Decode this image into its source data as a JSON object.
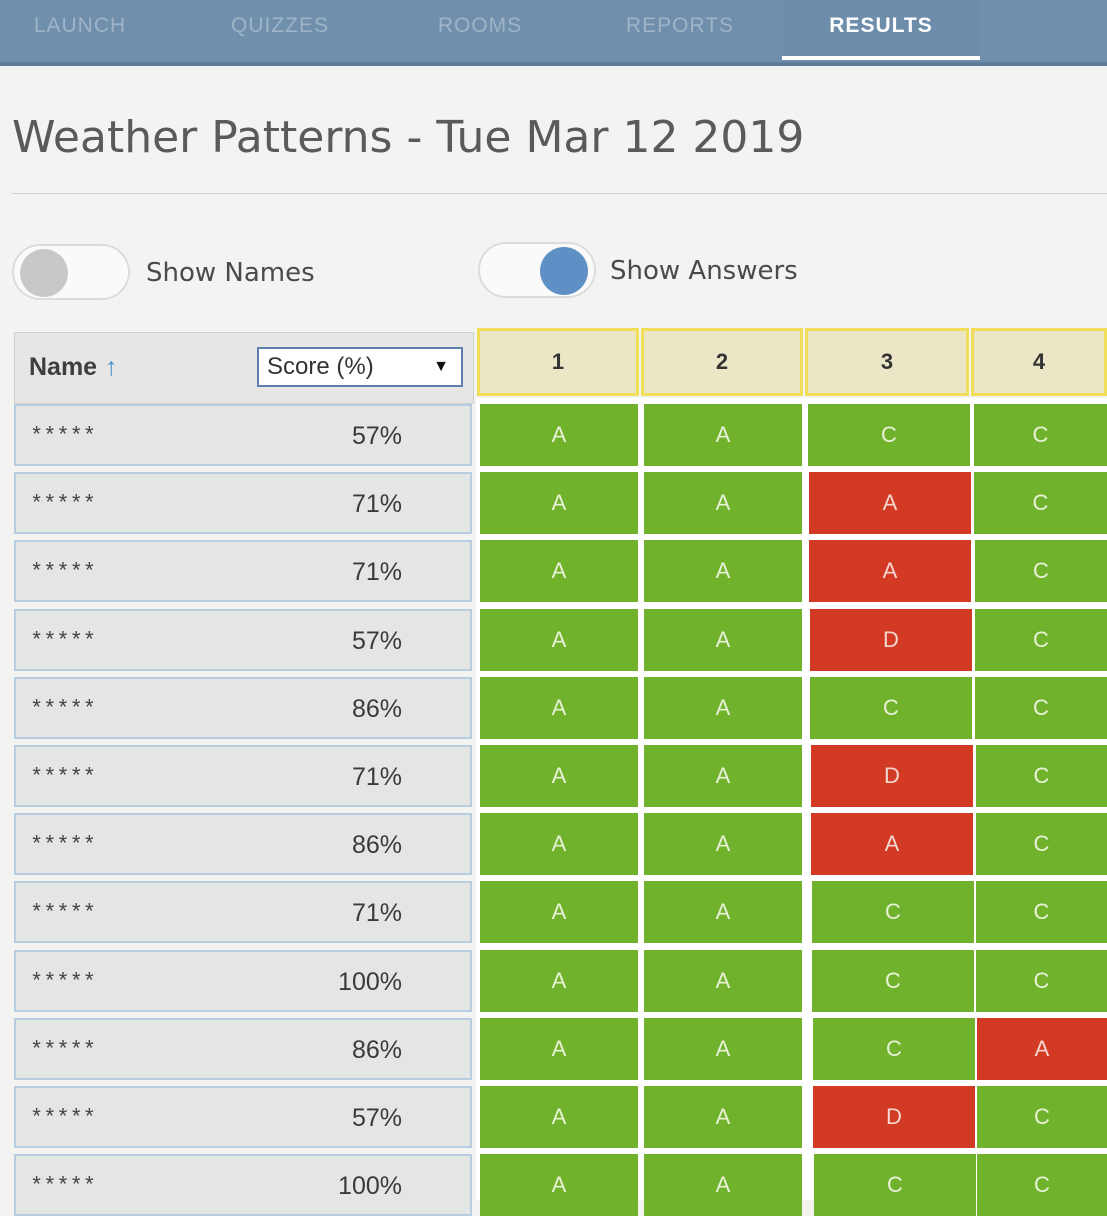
{
  "nav": {
    "tabs": [
      {
        "label": "LAUNCH",
        "active": false
      },
      {
        "label": "QUIZZES",
        "active": false
      },
      {
        "label": "ROOMS",
        "active": false
      },
      {
        "label": "REPORTS",
        "active": false
      },
      {
        "label": "RESULTS",
        "active": true
      }
    ]
  },
  "title": "Weather Patterns - Tue Mar 12 2019",
  "toggles": {
    "show_names": {
      "label": "Show Names",
      "on": false
    },
    "show_answers": {
      "label": "Show Answers",
      "on": true
    }
  },
  "table": {
    "name_header": "Name",
    "sort_arrow": "↑",
    "score_select": "Score (%)",
    "questions": [
      "1",
      "2",
      "3",
      "4"
    ],
    "rows": [
      {
        "name": "*****",
        "score": "57%",
        "answers": [
          [
            "A",
            1
          ],
          [
            "A",
            1
          ],
          [
            "C",
            1
          ],
          [
            "C",
            1
          ]
        ]
      },
      {
        "name": "*****",
        "score": "71%",
        "answers": [
          [
            "A",
            1
          ],
          [
            "A",
            1
          ],
          [
            "A",
            0
          ],
          [
            "C",
            1
          ]
        ]
      },
      {
        "name": "*****",
        "score": "71%",
        "answers": [
          [
            "A",
            1
          ],
          [
            "A",
            1
          ],
          [
            "A",
            0
          ],
          [
            "C",
            1
          ]
        ]
      },
      {
        "name": "*****",
        "score": "57%",
        "answers": [
          [
            "A",
            1
          ],
          [
            "A",
            1
          ],
          [
            "D",
            0
          ],
          [
            "C",
            1
          ]
        ]
      },
      {
        "name": "*****",
        "score": "86%",
        "answers": [
          [
            "A",
            1
          ],
          [
            "A",
            1
          ],
          [
            "C",
            1
          ],
          [
            "C",
            1
          ]
        ]
      },
      {
        "name": "*****",
        "score": "71%",
        "answers": [
          [
            "A",
            1
          ],
          [
            "A",
            1
          ],
          [
            "D",
            0
          ],
          [
            "C",
            1
          ]
        ]
      },
      {
        "name": "*****",
        "score": "86%",
        "answers": [
          [
            "A",
            1
          ],
          [
            "A",
            1
          ],
          [
            "A",
            0
          ],
          [
            "C",
            1
          ]
        ]
      },
      {
        "name": "*****",
        "score": "71%",
        "answers": [
          [
            "A",
            1
          ],
          [
            "A",
            1
          ],
          [
            "C",
            1
          ],
          [
            "C",
            1
          ]
        ]
      },
      {
        "name": "*****",
        "score": "100%",
        "answers": [
          [
            "A",
            1
          ],
          [
            "A",
            1
          ],
          [
            "C",
            1
          ],
          [
            "C",
            1
          ]
        ]
      },
      {
        "name": "*****",
        "score": "86%",
        "answers": [
          [
            "A",
            1
          ],
          [
            "A",
            1
          ],
          [
            "C",
            1
          ],
          [
            "A",
            0
          ]
        ]
      },
      {
        "name": "*****",
        "score": "57%",
        "answers": [
          [
            "A",
            1
          ],
          [
            "A",
            1
          ],
          [
            "D",
            0
          ],
          [
            "C",
            1
          ]
        ]
      },
      {
        "name": "*****",
        "score": "100%",
        "answers": [
          [
            "A",
            1
          ],
          [
            "A",
            1
          ],
          [
            "C",
            1
          ],
          [
            "C",
            1
          ]
        ]
      }
    ]
  },
  "colors": {
    "correct": "#71b22d",
    "wrong": "#d33a23",
    "nav_bg": "#6f8fac",
    "question_header_border": "#f0de58",
    "toggle_on": "#5e8fc5",
    "toggle_off": "#c8c8c8"
  }
}
